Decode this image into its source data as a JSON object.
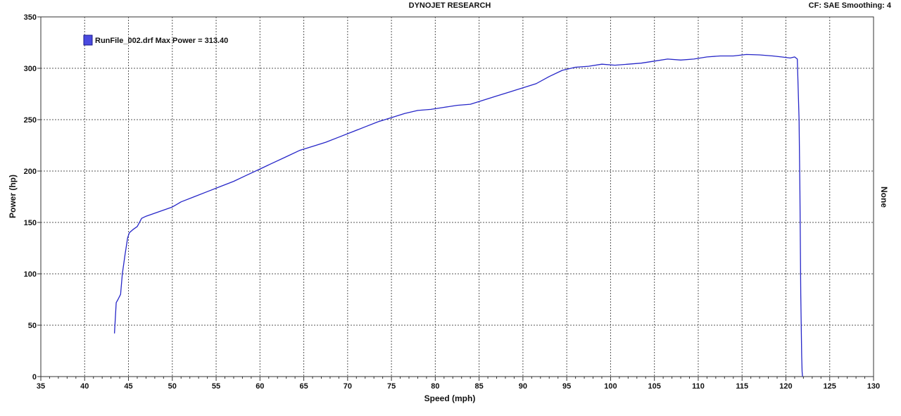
{
  "header": {
    "title": "DYNOJET RESEARCH",
    "correction_label": "CF: SAE  Smoothing: 4"
  },
  "legend": {
    "entry": "RunFile_002.drf Max Power = 313.40",
    "swatch_color": "#4a4ae0"
  },
  "right_axis": {
    "label": "None"
  },
  "chart_data": {
    "type": "line",
    "title": "DYNOJET RESEARCH",
    "xlabel": "Speed (mph)",
    "ylabel": "Power (hp)",
    "xlim": [
      35,
      130
    ],
    "ylim": [
      0,
      350
    ],
    "x_major_step": 5,
    "x_minor_step": 1,
    "y_major_step": 50,
    "grid": true,
    "legend_position": "top-left",
    "line_color": "#2626c8",
    "series": [
      {
        "name": "RunFile_002.drf Max Power = 313.40",
        "x": [
          43.4,
          43.6,
          43.8,
          44.1,
          44.3,
          44.6,
          44.9,
          45.1,
          45.5,
          46.0,
          46.5,
          47.0,
          48.0,
          49.0,
          50.0,
          51.0,
          52.5,
          54.0,
          55.5,
          57.0,
          58.5,
          60.0,
          61.5,
          63.0,
          64.5,
          66.0,
          67.5,
          69.0,
          70.5,
          72.0,
          73.5,
          75.0,
          76.5,
          78.0,
          79.5,
          81.0,
          82.5,
          84.0,
          85.5,
          87.0,
          88.5,
          90.0,
          91.5,
          93.0,
          94.5,
          96.0,
          97.5,
          99.0,
          100.5,
          102.0,
          103.5,
          105.0,
          106.5,
          108.0,
          109.5,
          111.0,
          112.5,
          114.0,
          115.5,
          117.0,
          118.5,
          119.5,
          120.5,
          121.0,
          121.3,
          121.5,
          121.6,
          121.7,
          121.8,
          121.85,
          121.9
        ],
        "values": [
          42,
          72,
          75,
          80,
          100,
          118,
          135,
          140,
          143,
          146,
          154,
          156,
          159,
          162,
          165,
          170,
          175,
          180,
          185,
          190,
          196,
          202,
          208,
          214,
          220,
          224,
          228,
          233,
          238,
          243,
          248,
          252,
          256,
          259,
          260,
          262,
          264,
          265,
          269,
          273,
          277,
          281,
          285,
          292,
          298,
          301,
          302,
          304,
          303,
          304,
          305,
          307,
          309,
          308,
          309,
          311,
          312,
          312,
          313.4,
          313,
          312,
          311,
          310,
          311,
          309,
          250,
          180,
          80,
          20,
          5,
          0
        ]
      }
    ]
  }
}
